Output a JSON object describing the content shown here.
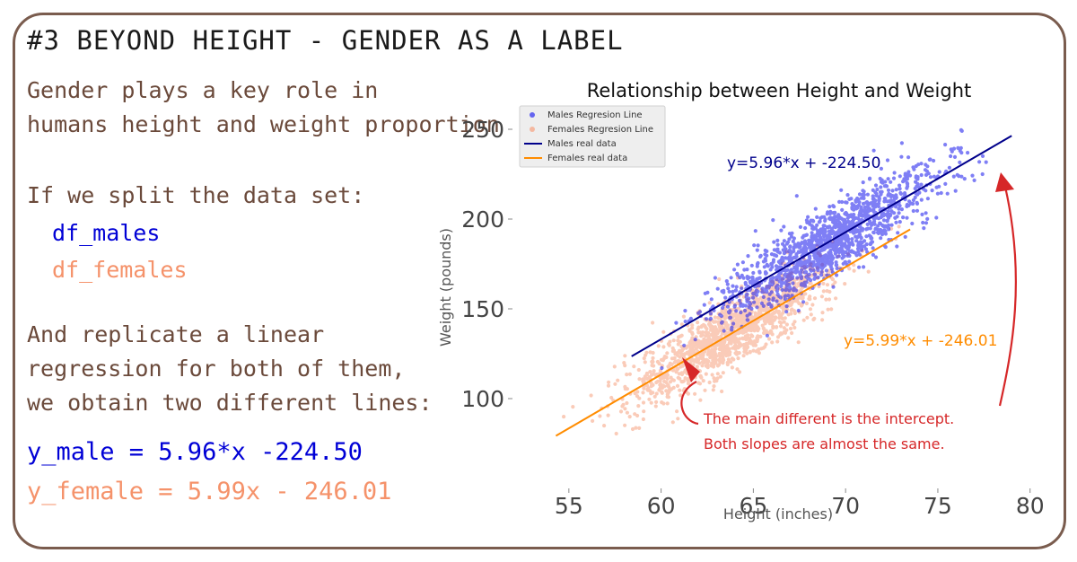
{
  "slide": {
    "title": "#3 BEYOND HEIGHT - GENDER AS A LABEL",
    "intro_line1": "Gender plays a key role in",
    "intro_line2": "humans height and weight proportion",
    "split_intro": "If we split the data set:",
    "df_males": "df_males",
    "df_females": "df_females",
    "replicate_line1": "And replicate a linear",
    "replicate_line2": "regression for both of them,",
    "replicate_line3": "we obtain two different lines:",
    "eq_male": "y_male = 5.96*x -224.50",
    "eq_female": "y_female = 5.99x - 246.01",
    "annotation_line1": "The main different is the intercept.",
    "annotation_line2": "Both slopes are almost the same."
  },
  "colors": {
    "frame": "#7a5c4e",
    "brown_text": "#6b4a3b",
    "male_points": "#2b2bf0",
    "female_points": "#f7a17f",
    "male_line": "#00008b",
    "female_line": "#ff8c00",
    "annotation": "#d62728"
  },
  "chart_data": {
    "type": "scatter",
    "title": "Relationship between Height and Weight",
    "xlabel": "Height (inches)",
    "ylabel": "Weight (pounds)",
    "xlim": [
      53.5,
      80.5
    ],
    "ylim": [
      72,
      262
    ],
    "xticks": [
      55,
      60,
      65,
      70,
      75,
      80
    ],
    "yticks": [
      100,
      150,
      200,
      250
    ],
    "legend": {
      "placement": "top-left",
      "entries": [
        "Males Regresion Line",
        "Females Regresion Line",
        "Males real data",
        "Females real data"
      ]
    },
    "series": [
      {
        "name": "Males",
        "kind": "scatter",
        "x_range": [
          58.4,
          79
        ],
        "center": [
          69,
          187
        ],
        "sd_height": 2.9,
        "residual_sd": 9.5,
        "n_points": 1400
      },
      {
        "name": "Females",
        "kind": "scatter",
        "x_range": [
          54.5,
          73.5
        ],
        "center": [
          63.7,
          135.9
        ],
        "sd_height": 2.7,
        "residual_sd": 9.0,
        "n_points": 1400
      }
    ],
    "fit_lines": [
      {
        "name": "Males",
        "slope": 5.96,
        "intercept": -224.5,
        "x_range": [
          58.4,
          79
        ],
        "label": "y=5.96*x + -224.50"
      },
      {
        "name": "Females",
        "slope": 5.99,
        "intercept": -246.01,
        "x_range": [
          54.3,
          73.5
        ],
        "label": "y=5.99*x + -246.01"
      }
    ]
  }
}
